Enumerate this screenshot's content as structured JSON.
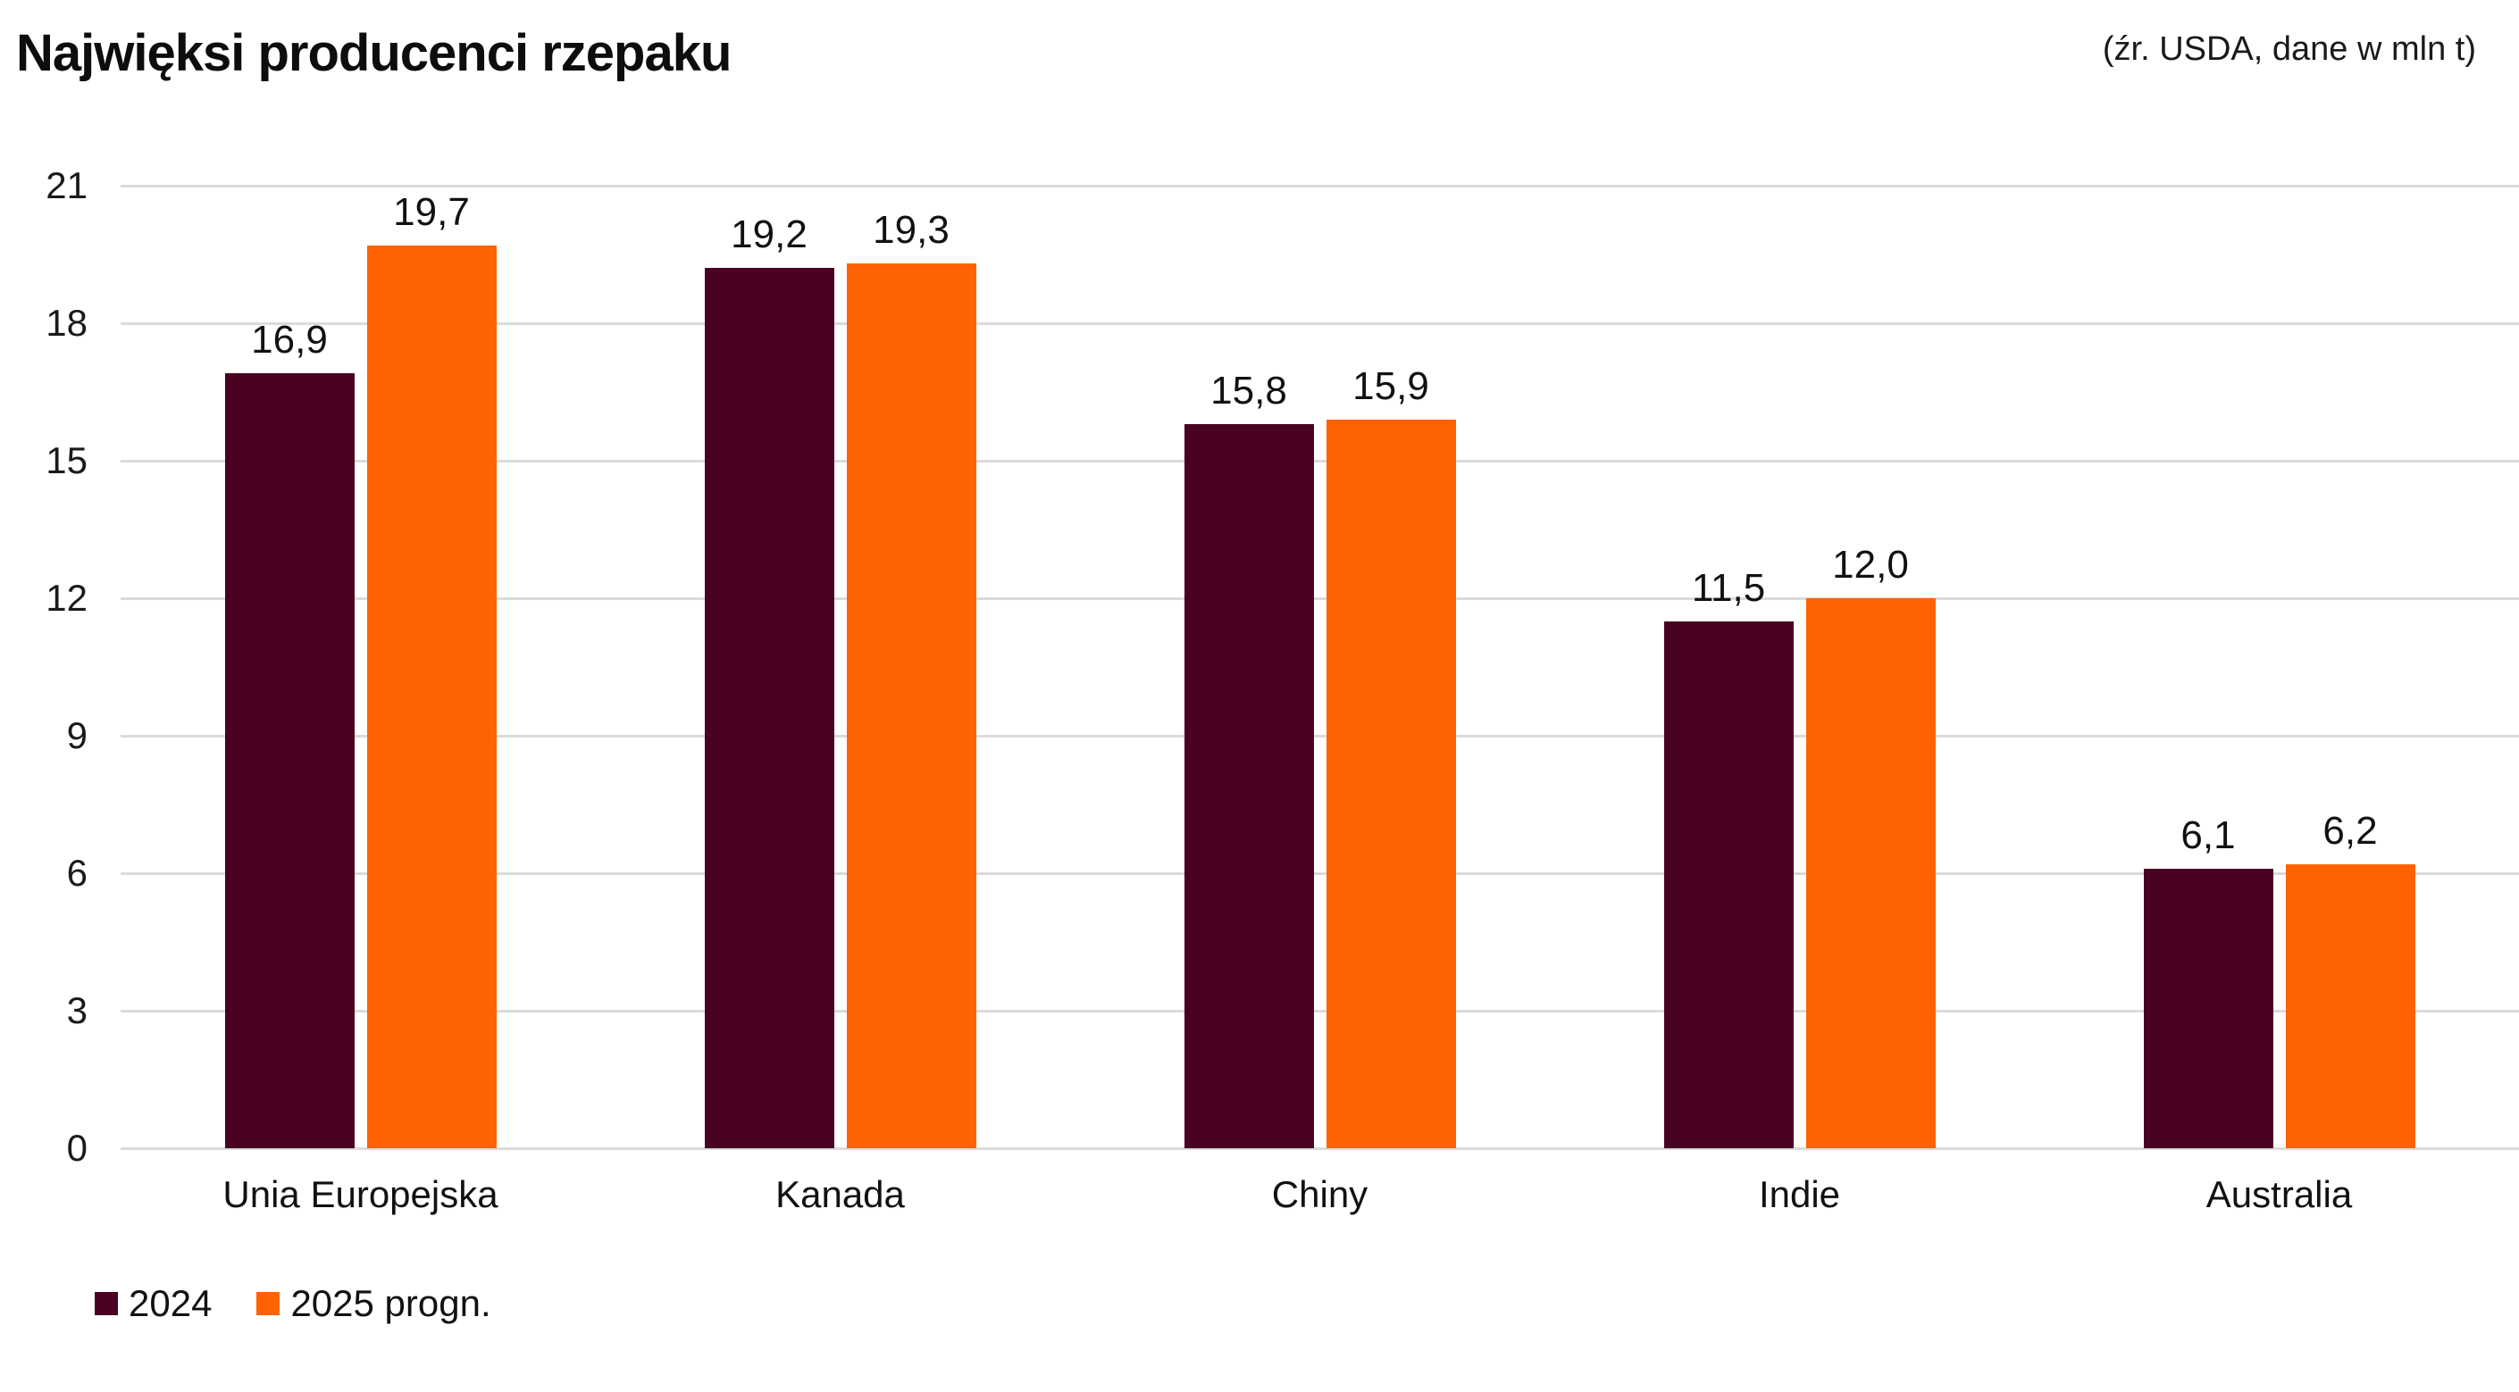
{
  "chart_data": {
    "type": "bar",
    "title": "Najwięksi producenci rzepaku",
    "source_note": "(źr. USDA, dane w mln t)",
    "categories": [
      "Unia Europejska",
      "Kanada",
      "Chiny",
      "Indie",
      "Australia"
    ],
    "series": [
      {
        "name": "2024",
        "color": "#4A0222",
        "values": [
          16.9,
          19.2,
          15.8,
          11.5,
          6.1
        ],
        "labels": [
          "16,9",
          "19,2",
          "15,8",
          "11,5",
          "6,1"
        ]
      },
      {
        "name": "2025 progn.",
        "color": "#FF6200",
        "values": [
          19.7,
          19.3,
          15.9,
          12.0,
          6.2
        ],
        "labels": [
          "19,7",
          "19,3",
          "15,9",
          "12,0",
          "6,2"
        ]
      }
    ],
    "yticks": [
      0,
      3,
      6,
      9,
      12,
      15,
      18,
      21
    ],
    "ylim": [
      0,
      21
    ],
    "grid": true,
    "grid_color": "#DBDBDB",
    "text_color": "#1A1A1A",
    "legend_position": "bottom-left",
    "decimal_separator": ","
  }
}
